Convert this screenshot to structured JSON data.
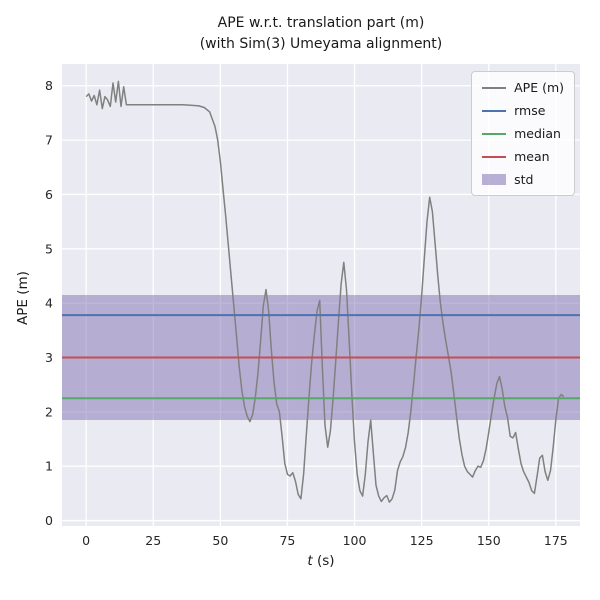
{
  "figure": {
    "title_line1": "APE w.r.t. translation part (m)",
    "title_line2": "(with Sim(3) Umeyama alignment)",
    "xlabel_var": "t",
    "xlabel_unit": " (s)",
    "ylabel": "APE (m)"
  },
  "chart_data": {
    "type": "line",
    "title": "APE w.r.t. translation part (m) (with Sim(3) Umeyama alignment)",
    "xlabel": "t (s)",
    "ylabel": "APE (m)",
    "xlim": [
      -9,
      184
    ],
    "ylim": [
      -0.1,
      8.4
    ],
    "xticks": [
      0,
      25,
      50,
      75,
      100,
      125,
      150,
      175
    ],
    "yticks": [
      0,
      1,
      2,
      3,
      4,
      5,
      6,
      7,
      8
    ],
    "grid": true,
    "legend_position": "upper right",
    "colors": {
      "figure_bg": "#FFFFFF",
      "axes_bg": "#EAEAF2",
      "grid": "#FFFFFF",
      "tick_label": "#262626",
      "ape_line": "#808080",
      "rmse": "#4C72B0",
      "median": "#55A868",
      "mean": "#C44E52",
      "std": "#8172B2"
    },
    "series": [
      {
        "name": "APE (m)",
        "type": "line",
        "color": "#808080",
        "x": [
          0,
          1,
          2,
          3,
          4,
          5,
          6,
          7,
          8,
          9,
          10,
          11,
          12,
          13,
          14,
          15,
          18,
          21,
          24,
          27,
          30,
          33,
          36,
          39,
          42,
          44,
          46,
          48,
          49,
          50,
          51,
          52,
          53,
          54,
          55,
          56,
          57,
          58,
          59,
          60,
          61,
          62,
          63,
          64,
          65,
          66,
          67,
          68,
          69,
          70,
          71,
          72,
          73,
          74,
          75,
          76,
          77,
          78,
          79,
          80,
          81,
          82,
          83,
          84,
          85,
          86,
          87,
          88,
          89,
          90,
          91,
          92,
          93,
          94,
          95,
          96,
          97,
          98,
          99,
          100,
          101,
          102,
          103,
          104,
          105,
          106,
          107,
          108,
          109,
          110,
          111,
          112,
          113,
          114,
          115,
          116,
          117,
          118,
          119,
          120,
          121,
          122,
          123,
          124,
          125,
          126,
          127,
          128,
          129,
          130,
          131,
          132,
          133,
          134,
          135,
          136,
          137,
          138,
          139,
          140,
          141,
          142,
          143,
          144,
          145,
          146,
          147,
          148,
          149,
          150,
          151,
          152,
          153,
          154,
          155,
          156,
          157,
          158,
          159,
          160,
          161,
          162,
          163,
          164,
          165,
          166,
          167,
          168,
          169,
          170,
          171,
          172,
          173,
          174,
          175,
          176,
          177,
          178
        ],
        "y": [
          7.8,
          7.85,
          7.72,
          7.82,
          7.65,
          7.92,
          7.58,
          7.8,
          7.74,
          7.62,
          8.05,
          7.7,
          8.08,
          7.62,
          7.98,
          7.65,
          7.65,
          7.65,
          7.65,
          7.65,
          7.65,
          7.65,
          7.65,
          7.64,
          7.63,
          7.6,
          7.52,
          7.25,
          7.0,
          6.6,
          6.1,
          5.6,
          5.05,
          4.5,
          3.95,
          3.4,
          2.85,
          2.4,
          2.1,
          1.92,
          1.82,
          1.95,
          2.25,
          2.7,
          3.3,
          3.95,
          4.25,
          3.85,
          3.15,
          2.55,
          2.15,
          2.0,
          1.55,
          1.05,
          0.85,
          0.82,
          0.88,
          0.72,
          0.48,
          0.4,
          0.85,
          1.55,
          2.25,
          2.9,
          3.4,
          3.85,
          4.05,
          2.85,
          1.75,
          1.35,
          1.65,
          2.25,
          2.95,
          3.65,
          4.35,
          4.75,
          4.25,
          3.3,
          2.3,
          1.45,
          0.85,
          0.55,
          0.45,
          0.85,
          1.45,
          1.85,
          1.25,
          0.65,
          0.45,
          0.35,
          0.42,
          0.46,
          0.34,
          0.4,
          0.56,
          0.92,
          1.08,
          1.18,
          1.34,
          1.62,
          2.02,
          2.52,
          3.05,
          3.55,
          4.12,
          4.82,
          5.5,
          5.95,
          5.68,
          5.1,
          4.5,
          4.0,
          3.62,
          3.3,
          3.02,
          2.72,
          2.32,
          1.92,
          1.52,
          1.22,
          1.0,
          0.9,
          0.85,
          0.8,
          0.92,
          1.0,
          0.98,
          1.1,
          1.32,
          1.62,
          1.95,
          2.25,
          2.52,
          2.65,
          2.42,
          2.1,
          1.9,
          1.55,
          1.52,
          1.62,
          1.32,
          1.05,
          0.9,
          0.8,
          0.7,
          0.55,
          0.5,
          0.82,
          1.15,
          1.2,
          0.9,
          0.74,
          0.92,
          1.35,
          1.85,
          2.25,
          2.32,
          2.28
        ]
      },
      {
        "name": "rmse",
        "type": "hline",
        "color": "#4C72B0",
        "value": 3.78
      },
      {
        "name": "median",
        "type": "hline",
        "color": "#55A868",
        "value": 2.25
      },
      {
        "name": "mean",
        "type": "hline",
        "color": "#C44E52",
        "value": 3.0
      },
      {
        "name": "std",
        "type": "band",
        "color": "#8172B2",
        "alpha": 0.5,
        "ymin": 1.85,
        "ymax": 4.15
      }
    ],
    "legend": [
      {
        "label": "APE (m)",
        "swatch": "line",
        "color": "#808080"
      },
      {
        "label": "rmse",
        "swatch": "line",
        "color": "#4C72B0"
      },
      {
        "label": "median",
        "swatch": "line",
        "color": "#55A868"
      },
      {
        "label": "mean",
        "swatch": "line",
        "color": "#C44E52"
      },
      {
        "label": "std",
        "swatch": "patch",
        "color": "#8172B2"
      }
    ]
  }
}
